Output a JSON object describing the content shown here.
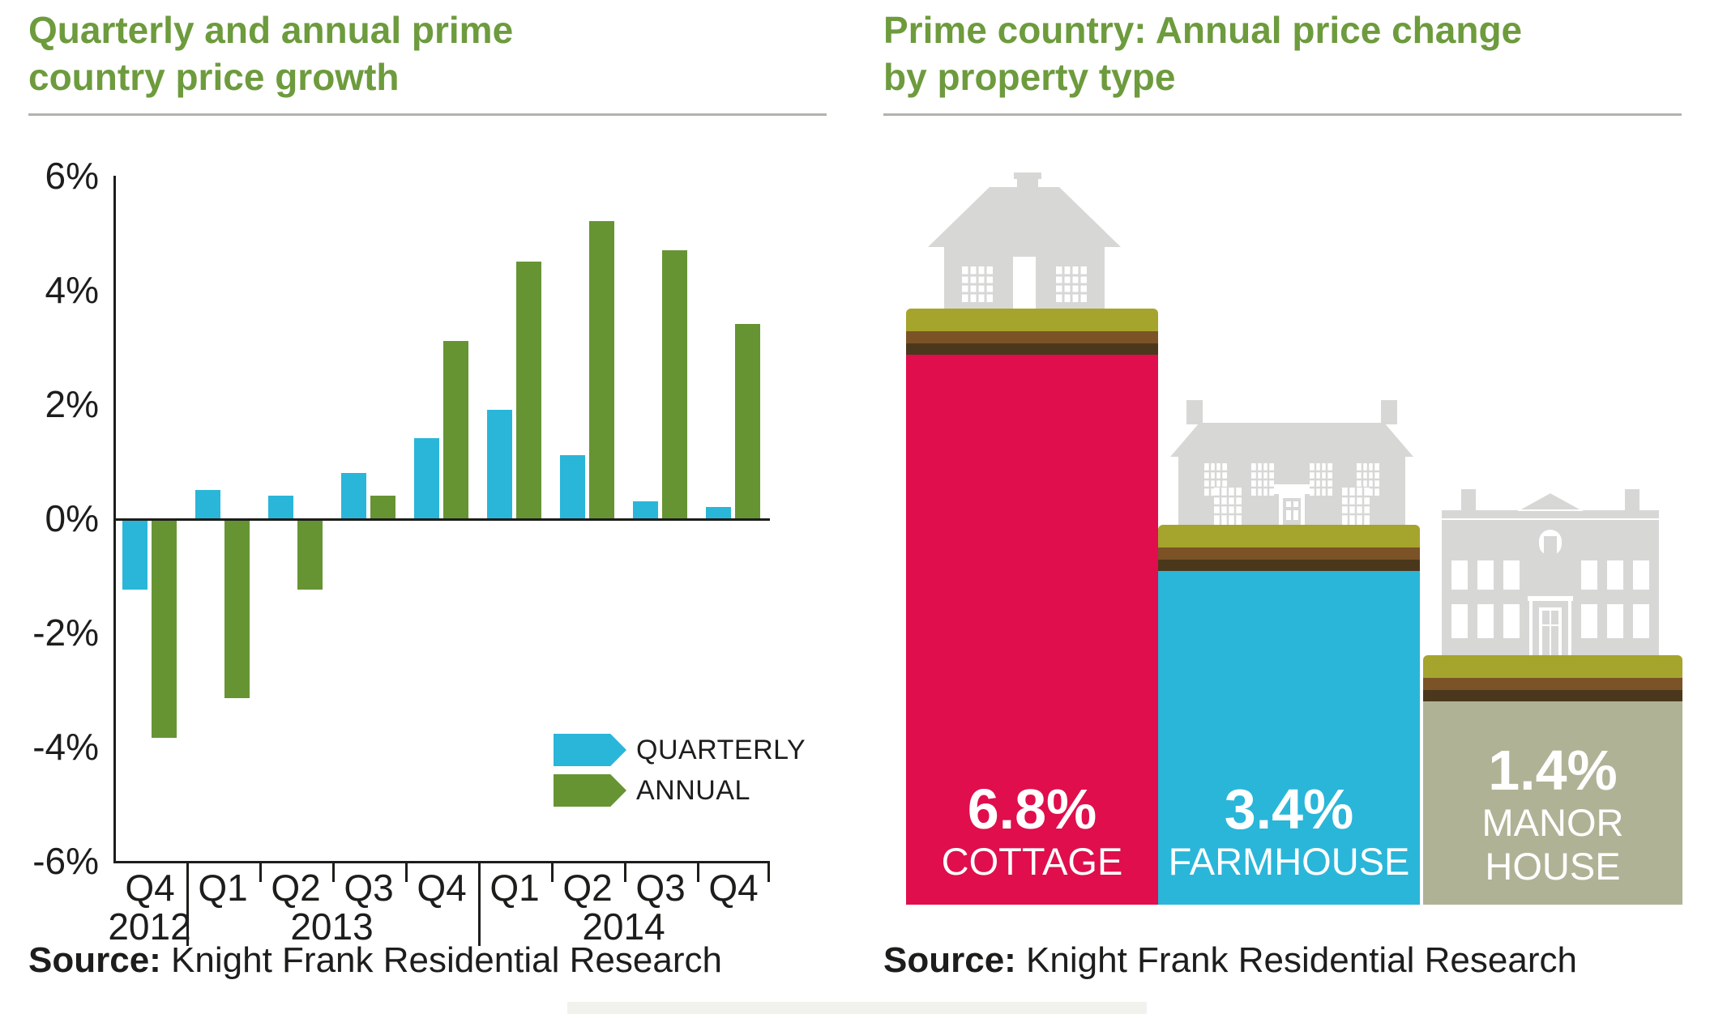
{
  "left_panel": {
    "title_line1": "Quarterly and annual prime",
    "title_line2": "country price growth",
    "source_label": "Source:",
    "source_text": " Knight Frank Residential Research"
  },
  "right_panel": {
    "title_line1": "Prime country: Annual price change",
    "title_line2": "by property type",
    "source_label": "Source:",
    "source_text": " Knight Frank Residential Research"
  },
  "colors": {
    "title_green": "#6d9b3d",
    "quarterly_blue": "#29b6d9",
    "annual_green": "#669433",
    "cottage_red": "#e00e4c",
    "farmhouse_blue": "#29b6d9",
    "manor_sage": "#b0b295",
    "grass": "#a5a42c",
    "soil_mid": "#7b5327",
    "soil_dark": "#4b381c",
    "house_gray": "#d7d7d5",
    "axis_black": "#1d1d1b"
  },
  "chart_data": [
    {
      "type": "bar",
      "title": "Quarterly and annual prime country price growth",
      "categories": [
        "Q4 2012",
        "Q1 2013",
        "Q2 2013",
        "Q3 2013",
        "Q4 2013",
        "Q1 2014",
        "Q2 2014",
        "Q3 2014",
        "Q4 2014"
      ],
      "series": [
        {
          "name": "QUARTERLY",
          "color": "#29b6d9",
          "values": [
            -1.2,
            0.5,
            0.4,
            0.8,
            1.4,
            1.9,
            1.1,
            0.3,
            0.2
          ]
        },
        {
          "name": "ANNUAL",
          "color": "#669433",
          "values": [
            -3.8,
            -3.1,
            -1.2,
            0.4,
            3.1,
            4.5,
            5.2,
            4.7,
            3.4
          ]
        }
      ],
      "ylim": [
        -6,
        6
      ],
      "ytick_step": 2,
      "ytick_labels": [
        "6%",
        "4%",
        "2%",
        "0%",
        "-2%",
        "-4%",
        "-6%"
      ],
      "x_quarter_labels": [
        "Q4",
        "Q1",
        "Q2",
        "Q3",
        "Q4",
        "Q1",
        "Q2",
        "Q3",
        "Q4"
      ],
      "x_year_labels": [
        {
          "label": "2012",
          "groups": [
            0
          ]
        },
        {
          "label": "2013",
          "groups": [
            1,
            2,
            3,
            4
          ]
        },
        {
          "label": "2014",
          "groups": [
            5,
            6,
            7,
            8
          ]
        }
      ],
      "legend_position": "inside-bottom-right",
      "grid": false
    },
    {
      "type": "bar",
      "title": "Prime country: Annual price change by property type",
      "categories": [
        "COTTAGE",
        "FARMHOUSE",
        "MANOR HOUSE"
      ],
      "values": [
        6.8,
        3.4,
        1.4
      ],
      "value_labels": [
        "6.8%",
        "3.4%",
        "1.4%"
      ],
      "text_lines": [
        [
          "6.8%",
          "COTTAGE"
        ],
        [
          "3.4%",
          "FARMHOUSE"
        ],
        [
          "1.4%",
          "MANOR",
          "HOUSE"
        ]
      ],
      "colors": [
        "#e00e4c",
        "#29b6d9",
        "#b0b295"
      ],
      "icons": [
        "cottage-icon",
        "farmhouse-icon",
        "manor-house-icon"
      ],
      "grid": false
    }
  ]
}
